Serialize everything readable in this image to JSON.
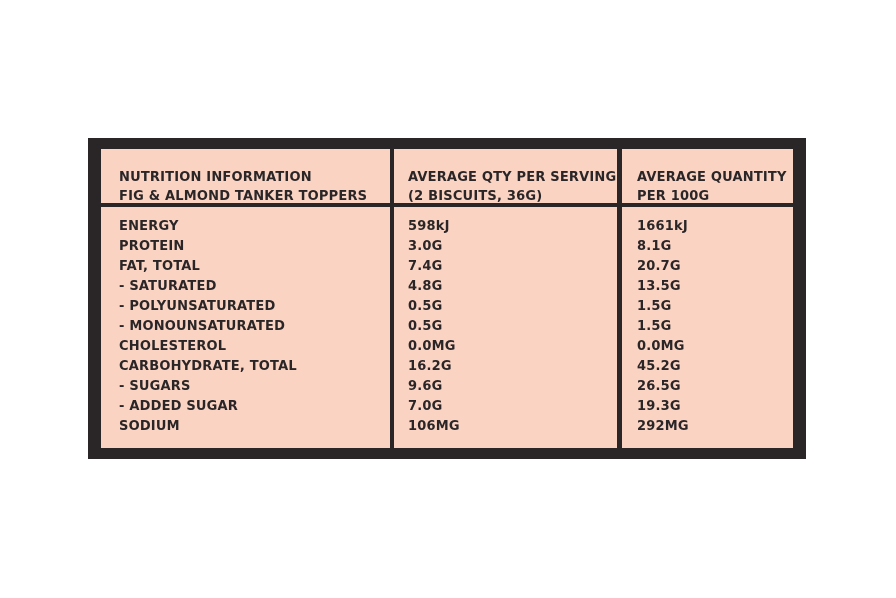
{
  "header": {
    "col1": [
      "NUTRITION INFORMATION",
      "FIG & ALMOND TANKER TOPPERS"
    ],
    "col2": [
      "AVERAGE QTY PER SERVING",
      "(2 BISCUITS, 36G)"
    ],
    "col3": [
      "AVERAGE QUANTITY",
      "PER 100G"
    ]
  },
  "rows": [
    {
      "name": "ENERGY",
      "serving": "598kJ",
      "per100": "1661kJ"
    },
    {
      "name": "PROTEIN",
      "serving": "3.0G",
      "per100": "8.1G"
    },
    {
      "name": "FAT, TOTAL",
      "serving": "7.4G",
      "per100": "20.7G"
    },
    {
      "name": "- SATURATED",
      "serving": "4.8G",
      "per100": "13.5G"
    },
    {
      "name": "- POLYUNSATURATED",
      "serving": "0.5G",
      "per100": "1.5G"
    },
    {
      "name": "- MONOUNSATURATED",
      "serving": "0.5G",
      "per100": "1.5G"
    },
    {
      "name": "CHOLESTEROL",
      "serving": "0.0MG",
      "per100": "0.0MG"
    },
    {
      "name": "CARBOHYDRATE, TOTAL",
      "serving": "16.2G",
      "per100": "45.2G"
    },
    {
      "name": "- SUGARS",
      "serving": "9.6G",
      "per100": "26.5G"
    },
    {
      "name": "- ADDED SUGAR",
      "serving": "7.0G",
      "per100": "19.3G"
    },
    {
      "name": "SODIUM",
      "serving": "106MG",
      "per100": "292MG"
    }
  ],
  "colors": {
    "frame": "#2a2627",
    "cell": "#fad3c3"
  }
}
